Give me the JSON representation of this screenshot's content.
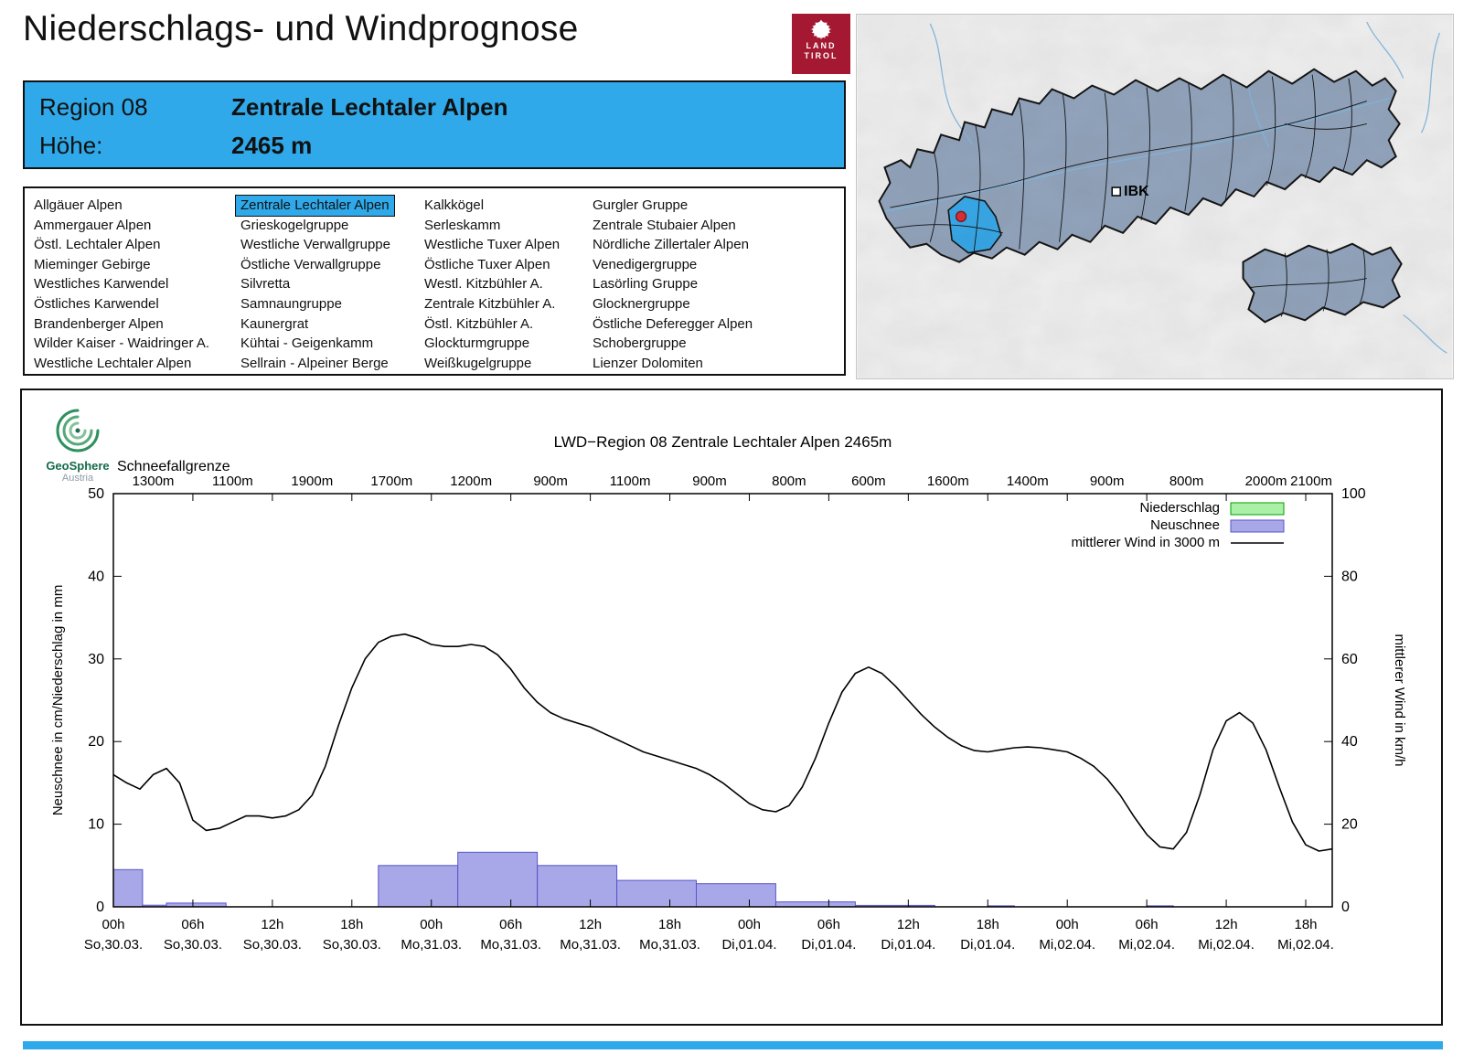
{
  "header": {
    "title": "Niederschlags- und Windprognose"
  },
  "land_tirol_logo": {
    "line1": "LAND",
    "line2": "TIROL",
    "background": "#a41931"
  },
  "map": {
    "marker_label": "IBK",
    "highlight_region": "Zentrale Lechtaler Alpen",
    "colors": {
      "region_fill": "#93a5bd",
      "highlight_fill": "#38a8e8",
      "marker_dot": "#d22f36",
      "river": "#7fb3d9",
      "border": "#141414"
    }
  },
  "banner": {
    "region_label": "Region 08",
    "region_name": "Zentrale Lechtaler Alpen",
    "altitude_label": "Höhe:",
    "altitude_value": "2465 m",
    "background": "#2fa9e9"
  },
  "region_list": {
    "selected": "Zentrale Lechtaler Alpen",
    "columns": [
      [
        "Allgäuer Alpen",
        "Ammergauer Alpen",
        "Östl. Lechtaler Alpen",
        "Mieminger Gebirge",
        "Westliches Karwendel",
        "Östliches Karwendel",
        "Brandenberger Alpen",
        "Wilder Kaiser - Waidringer A.",
        "Westliche Lechtaler Alpen"
      ],
      [
        "Zentrale Lechtaler Alpen",
        "Grieskogelgruppe",
        "Westliche Verwallgruppe",
        "Östliche Verwallgruppe",
        "Silvretta",
        "Samnaungruppe",
        "Kaunergrat",
        "Kühtai - Geigenkamm",
        "Sellrain - Alpeiner Berge"
      ],
      [
        "Kalkkögel",
        "Serleskamm",
        "Westliche Tuxer Alpen",
        "Östliche Tuxer Alpen",
        "Westl. Kitzbühler A.",
        "Zentrale Kitzbühler A.",
        "Östl. Kitzbühler A.",
        "Glockturmgruppe",
        "Weißkugelgruppe"
      ],
      [
        "Gurgler Gruppe",
        "Zentrale Stubaier Alpen",
        "Nördliche Zillertaler Alpen",
        "Venedigergruppe",
        "Lasörling Gruppe",
        "Glocknergruppe",
        "Östliche Deferegger Alpen",
        "Schobergruppe",
        "Lienzer Dolomiten"
      ]
    ]
  },
  "geosphere_logo": {
    "name": "GeoSphere",
    "country": "Austria"
  },
  "chart_data": {
    "type": "combo-bar-line",
    "title": "LWD−Region 08 Zentrale Lechtaler Alpen 2465m",
    "snowline": {
      "label": "Schneefallgrenze",
      "first_hour": 3,
      "step_hours": 6,
      "values": [
        "1300m",
        "1100m",
        "1900m",
        "1700m",
        "1200m",
        "900m",
        "1100m",
        "900m",
        "800m",
        "600m",
        "1600m",
        "1400m",
        "900m",
        "800m",
        "2000m",
        "2100m"
      ]
    },
    "axes": {
      "left_label": "Neuschnee in cm/Niederschlag in mm",
      "right_label": "mittlerer Wind in km/h",
      "left_ticks": [
        0,
        10,
        20,
        30,
        40,
        50
      ],
      "right_ticks": [
        0,
        20,
        40,
        60,
        80,
        100
      ],
      "left_max": 50,
      "right_max": 100,
      "hours_span": 92,
      "grid": false
    },
    "x_ticks": [
      {
        "t": "00h",
        "d": "So,30.03."
      },
      {
        "t": "06h",
        "d": "So,30.03."
      },
      {
        "t": "12h",
        "d": "So,30.03."
      },
      {
        "t": "18h",
        "d": "So,30.03."
      },
      {
        "t": "00h",
        "d": "Mo,31.03."
      },
      {
        "t": "06h",
        "d": "Mo,31.03."
      },
      {
        "t": "12h",
        "d": "Mo,31.03."
      },
      {
        "t": "18h",
        "d": "Mo,31.03."
      },
      {
        "t": "00h",
        "d": "Di,01.04."
      },
      {
        "t": "06h",
        "d": "Di,01.04."
      },
      {
        "t": "12h",
        "d": "Di,01.04."
      },
      {
        "t": "18h",
        "d": "Di,01.04."
      },
      {
        "t": "00h",
        "d": "Mi,02.04."
      },
      {
        "t": "06h",
        "d": "Mi,02.04."
      },
      {
        "t": "12h",
        "d": "Mi,02.04."
      },
      {
        "t": "18h",
        "d": "Mi,02.04."
      }
    ],
    "legend": [
      {
        "label": "Niederschlag",
        "swatch": "box",
        "fill": "#aaf0a6",
        "stroke": "#00a000"
      },
      {
        "label": "Neuschnee",
        "swatch": "box",
        "fill": "#a8a8e8",
        "stroke": "#5555cc"
      },
      {
        "label": "mittlerer Wind in 3000 m",
        "swatch": "line",
        "stroke": "#000000"
      }
    ],
    "neuschnee_bars": [
      {
        "from": 0,
        "to": 2.2,
        "cm": 4.5
      },
      {
        "from": 2.2,
        "to": 4,
        "cm": 0.2
      },
      {
        "from": 4,
        "to": 8.5,
        "cm": 0.45
      },
      {
        "from": 20,
        "to": 26,
        "cm": 5.0
      },
      {
        "from": 26,
        "to": 32,
        "cm": 6.6
      },
      {
        "from": 32,
        "to": 38,
        "cm": 5.0
      },
      {
        "from": 38,
        "to": 44,
        "cm": 3.2
      },
      {
        "from": 44,
        "to": 50,
        "cm": 2.8
      },
      {
        "from": 50,
        "to": 56,
        "cm": 0.6
      },
      {
        "from": 56,
        "to": 62,
        "cm": 0.18
      },
      {
        "from": 66,
        "to": 68,
        "cm": 0.12
      },
      {
        "from": 78,
        "to": 80,
        "cm": 0.12
      }
    ],
    "niederschlag_bars": [],
    "wind": {
      "name": "mittlerer Wind in 3000 m",
      "unit": "km/h",
      "start_hour": 0,
      "step_hours": 1,
      "values": [
        32,
        30,
        28.5,
        32,
        33.5,
        30,
        21,
        18.5,
        19,
        20.5,
        22,
        22,
        21.5,
        22,
        23.5,
        27,
        34,
        44,
        53,
        60,
        64,
        65.5,
        66,
        65,
        63.5,
        63,
        63,
        63.5,
        63,
        61,
        57.5,
        53,
        49.5,
        47,
        45.5,
        44.5,
        43.5,
        42,
        40.5,
        39,
        37.5,
        36.5,
        35.5,
        34.5,
        33.5,
        32,
        30,
        27.5,
        25,
        23.5,
        23,
        24.5,
        29,
        36,
        44.5,
        52,
        56.5,
        58,
        56.5,
        53.5,
        50,
        46.5,
        43.5,
        41,
        39,
        37.8,
        37.5,
        38,
        38.5,
        38.7,
        38.5,
        38,
        37.5,
        36,
        34,
        31,
        27,
        22,
        17.5,
        14.5,
        14,
        18,
        27,
        38,
        45,
        47,
        44.5,
        38,
        29,
        20.5,
        15,
        13.5,
        14
      ]
    }
  },
  "footer": {
    "bar_color": "#2fa9e9"
  }
}
